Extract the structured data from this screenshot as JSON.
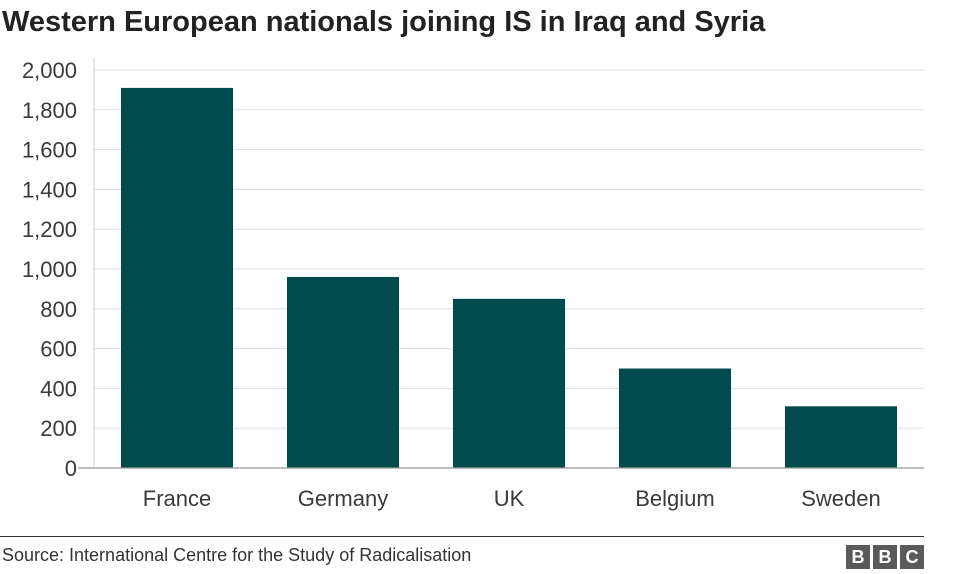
{
  "chart_data": {
    "type": "bar",
    "title": "Western European nationals joining IS in Iraq and Syria",
    "categories": [
      "France",
      "Germany",
      "UK",
      "Belgium",
      "Sweden"
    ],
    "values": [
      1910,
      960,
      850,
      500,
      310
    ],
    "ylim": [
      0,
      2000
    ],
    "yticks": [
      0,
      200,
      400,
      600,
      800,
      1000,
      1200,
      1400,
      1600,
      1800,
      2000
    ],
    "ytick_labels": [
      "0",
      "200",
      "400",
      "600",
      "800",
      "1,000",
      "1,200",
      "1,400",
      "1,600",
      "1,800",
      "2,000"
    ],
    "xlabel": "",
    "ylabel": "",
    "grid": true,
    "bar_color": "#004b4d"
  },
  "footer": {
    "source": "Source: International Centre for the Study of Radicalisation",
    "logo_letters": [
      "B",
      "B",
      "C"
    ]
  }
}
